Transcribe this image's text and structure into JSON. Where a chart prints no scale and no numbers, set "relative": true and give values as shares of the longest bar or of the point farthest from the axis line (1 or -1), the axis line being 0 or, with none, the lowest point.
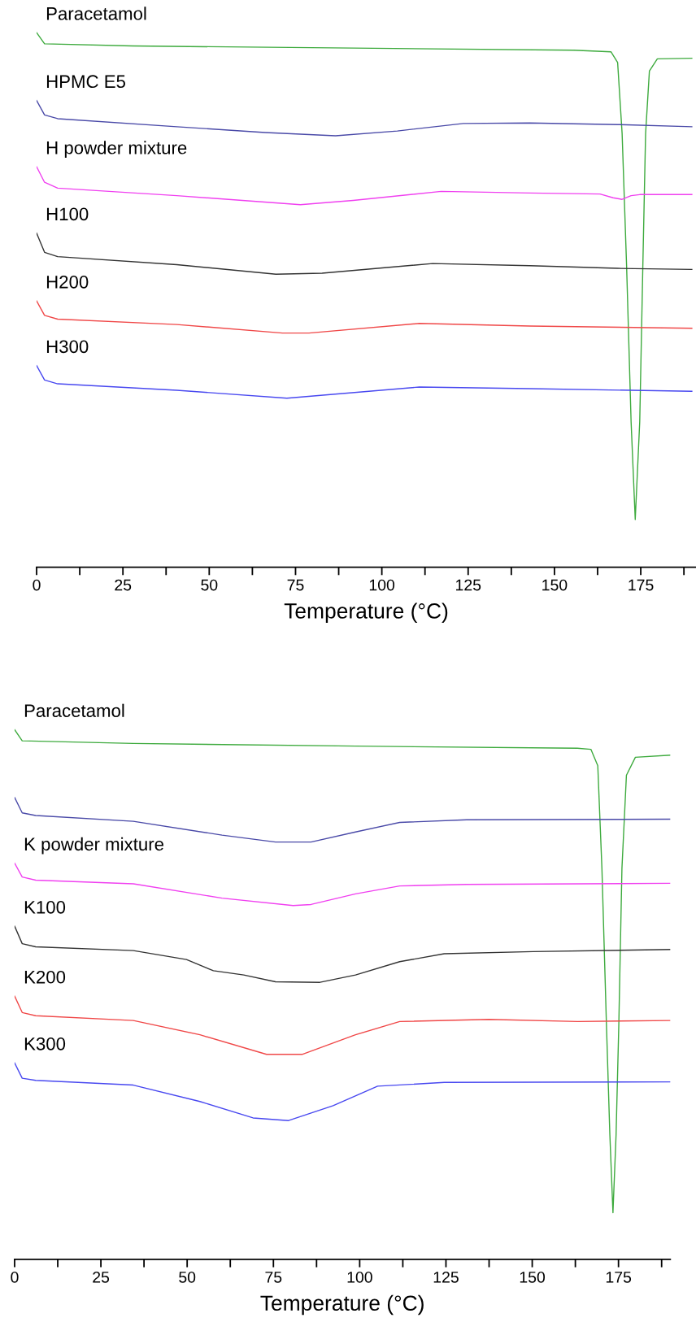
{
  "chart_data": [
    {
      "type": "line",
      "relative": true,
      "xlabel": "Temperature (°C)",
      "xlim": [
        0,
        191
      ],
      "xticks": [
        0,
        {
          "value": 12.5,
          "label": null
        },
        25,
        {
          "value": 37.5,
          "label": null
        },
        50,
        {
          "value": 62.5,
          "label": null
        },
        75,
        {
          "value": 87.5,
          "label": null
        },
        100,
        {
          "value": 112.5,
          "label": null
        },
        125,
        {
          "value": 137.5,
          "label": null
        },
        150,
        {
          "value": 162.5,
          "label": null
        },
        175,
        {
          "value": 187.5,
          "label": null
        }
      ],
      "tick_labels": "x",
      "grid": false,
      "legend": false,
      "marker": "none",
      "line_style": "solid",
      "series": [
        {
          "name": "Paracetamol",
          "color": "#3daa3d",
          "x": [
            0,
            2.3,
            27.8,
            91.7,
            155.6,
            166.4,
            168.3,
            169.6,
            170.9,
            172.2,
            173.4,
            174.7,
            175.6,
            176.4,
            177.5,
            179.8,
            189.8
          ],
          "values": [
            1.0,
            0.979,
            0.975,
            0.971,
            0.967,
            0.964,
            0.944,
            0.811,
            0.563,
            0.272,
            0.089,
            0.272,
            0.563,
            0.811,
            0.928,
            0.951,
            0.952
          ]
        },
        {
          "name": "HPMC E5",
          "color": "#4a4aa8",
          "x": [
            0,
            2.3,
            6.1,
            40.6,
            66.2,
            86.6,
            104.5,
            123.6,
            142.8,
            168.3,
            189.8
          ],
          "values": [
            0.873,
            0.846,
            0.839,
            0.824,
            0.813,
            0.807,
            0.816,
            0.83,
            0.831,
            0.828,
            0.824
          ]
        },
        {
          "name": "H powder mixture",
          "color": "#f040f0",
          "x": [
            0,
            2.3,
            6.1,
            40.6,
            76.4,
            91.7,
            117.2,
            142.8,
            163.2,
            167.0,
            169.6,
            172.2,
            174.7,
            189.8
          ],
          "values": [
            0.749,
            0.72,
            0.709,
            0.695,
            0.678,
            0.686,
            0.703,
            0.7,
            0.698,
            0.691,
            0.688,
            0.695,
            0.697,
            0.697
          ]
        },
        {
          "name": "H100",
          "color": "#333333",
          "x": [
            0,
            2.3,
            6.1,
            40.6,
            69.3,
            82.7,
            114.7,
            142.8,
            168.3,
            189.8
          ],
          "values": [
            0.625,
            0.589,
            0.581,
            0.566,
            0.548,
            0.55,
            0.568,
            0.564,
            0.559,
            0.557
          ]
        },
        {
          "name": "H200",
          "color": "#f04848",
          "x": [
            0,
            2.3,
            6.1,
            40.6,
            71.2,
            78.9,
            110.9,
            142.8,
            189.8
          ],
          "values": [
            0.498,
            0.471,
            0.464,
            0.454,
            0.438,
            0.438,
            0.456,
            0.451,
            0.447
          ]
        },
        {
          "name": "H300",
          "color": "#4848f0",
          "x": [
            0,
            2.3,
            6.1,
            40.6,
            72.5,
            110.9,
            142.8,
            189.8
          ],
          "values": [
            0.377,
            0.35,
            0.343,
            0.331,
            0.316,
            0.337,
            0.334,
            0.329
          ]
        }
      ]
    },
    {
      "type": "line",
      "relative": true,
      "xlabel": "Temperature (°C)",
      "xlim": [
        0,
        190
      ],
      "xticks": [
        0,
        {
          "value": 12.5,
          "label": null
        },
        25,
        {
          "value": 37.5,
          "label": null
        },
        50,
        {
          "value": 62.5,
          "label": null
        },
        75,
        {
          "value": 87.5,
          "label": null
        },
        100,
        {
          "value": 112.5,
          "label": null
        },
        125,
        {
          "value": 137.5,
          "label": null
        },
        150,
        {
          "value": 162.5,
          "label": null
        },
        175,
        {
          "value": 187.5,
          "label": null
        }
      ],
      "tick_labels": "x",
      "grid": false,
      "legend": false,
      "marker": "none",
      "line_style": "solid",
      "series": [
        {
          "name": "Paracetamol",
          "color": "#3daa3d",
          "x": [
            0,
            2.2,
            34.4,
            98.8,
            163.1,
            167.0,
            169.0,
            170.2,
            171.5,
            172.5,
            173.4,
            174.3,
            175.1,
            176.0,
            177.3,
            179.9,
            190
          ],
          "values": [
            1.0,
            0.979,
            0.974,
            0.969,
            0.965,
            0.963,
            0.932,
            0.738,
            0.445,
            0.235,
            0.088,
            0.235,
            0.445,
            0.738,
            0.914,
            0.948,
            0.952
          ]
        },
        {
          "color": "#4a4aa8",
          "x": [
            0,
            2.2,
            6.1,
            34.4,
            60.1,
            75.6,
            85.9,
            98.8,
            111.6,
            131.0,
            190
          ],
          "values": [
            0.872,
            0.843,
            0.838,
            0.827,
            0.801,
            0.788,
            0.788,
            0.807,
            0.825,
            0.83,
            0.831
          ]
        },
        {
          "name": "K powder mixture",
          "color": "#f040f0",
          "x": [
            0,
            2.2,
            6.1,
            34.4,
            60.1,
            80.7,
            85.9,
            98.8,
            111.6,
            131.0,
            190
          ],
          "values": [
            0.748,
            0.722,
            0.716,
            0.709,
            0.682,
            0.668,
            0.67,
            0.69,
            0.705,
            0.708,
            0.71
          ]
        },
        {
          "name": "K100",
          "color": "#333333",
          "x": [
            0,
            2.2,
            6.1,
            34.4,
            49.8,
            57.6,
            66.4,
            75.6,
            88.5,
            98.8,
            111.6,
            124.5,
            150.3,
            190
          ],
          "values": [
            0.629,
            0.596,
            0.59,
            0.583,
            0.566,
            0.545,
            0.537,
            0.524,
            0.523,
            0.537,
            0.562,
            0.577,
            0.581,
            0.585
          ]
        },
        {
          "name": "K200",
          "color": "#f04848",
          "x": [
            0,
            2.2,
            6.1,
            34.4,
            53.7,
            73.0,
            83.3,
            98.8,
            111.6,
            137.4,
            163.1,
            190
          ],
          "values": [
            0.497,
            0.466,
            0.46,
            0.451,
            0.424,
            0.387,
            0.387,
            0.424,
            0.449,
            0.453,
            0.449,
            0.451
          ]
        },
        {
          "name": "K300",
          "color": "#4848f0",
          "x": [
            0,
            2.2,
            6.1,
            34.4,
            53.7,
            69.1,
            79.4,
            92.3,
            105.2,
            124.5,
            190
          ],
          "values": [
            0.371,
            0.342,
            0.338,
            0.329,
            0.298,
            0.267,
            0.262,
            0.29,
            0.327,
            0.334,
            0.335
          ]
        }
      ]
    }
  ]
}
